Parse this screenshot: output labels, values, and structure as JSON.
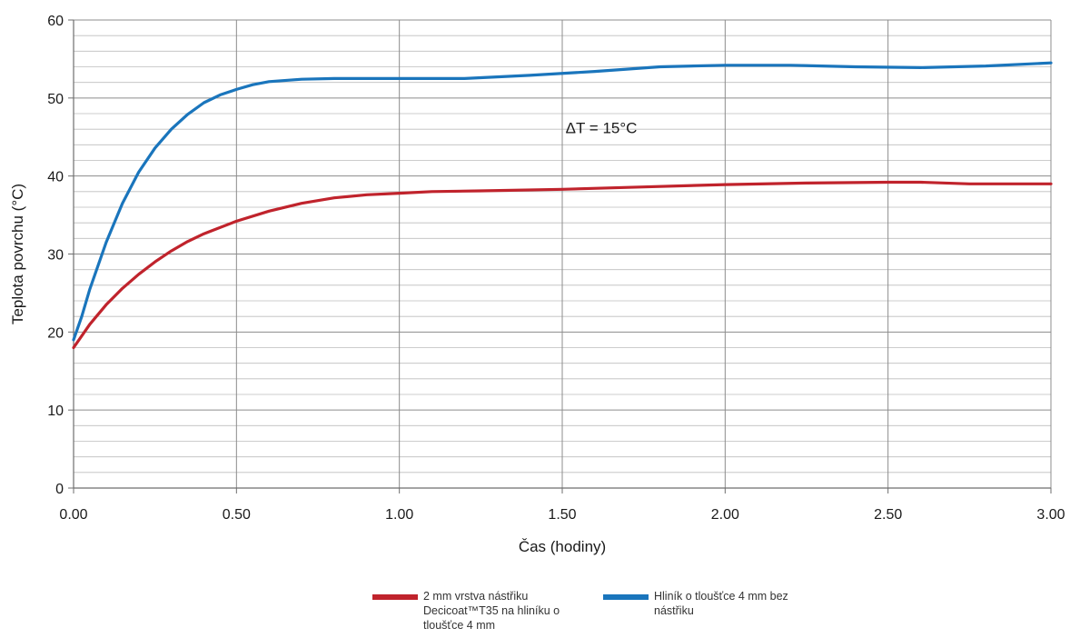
{
  "chart_data": {
    "type": "line",
    "title": "",
    "xlabel": "Čas (hodiny)",
    "ylabel": "Teplota povrchu (°C)",
    "xlim": [
      0,
      3
    ],
    "ylim": [
      0,
      60
    ],
    "x_ticks": [
      "0.00",
      "0.50",
      "1.00",
      "1.50",
      "2.00",
      "2.50",
      "3.00"
    ],
    "y_ticks": [
      "0",
      "10",
      "20",
      "30",
      "40",
      "50",
      "60"
    ],
    "grid": true,
    "legend_position": "bottom",
    "annotation": "ΔT = 15°C",
    "series": [
      {
        "name": "2 mm vrstva nástřiku Decicoat™T35 na hliníku o tloušťce 4 mm",
        "color": "#c0232c",
        "x": [
          0,
          0.05,
          0.1,
          0.15,
          0.2,
          0.25,
          0.3,
          0.35,
          0.4,
          0.5,
          0.6,
          0.7,
          0.8,
          0.9,
          1.0,
          1.1,
          1.25,
          1.5,
          1.75,
          2.0,
          2.25,
          2.5,
          2.6,
          2.75,
          3.0
        ],
        "y": [
          18,
          21,
          23.5,
          25.6,
          27.4,
          29.0,
          30.4,
          31.6,
          32.6,
          34.2,
          35.5,
          36.5,
          37.2,
          37.6,
          37.8,
          38.0,
          38.1,
          38.3,
          38.6,
          38.9,
          39.1,
          39.2,
          39.2,
          39.0,
          39.0
        ]
      },
      {
        "name": "Hliník o tloušťce 4 mm bez nástřiku",
        "color": "#1a75bc",
        "x": [
          0,
          0.025,
          0.05,
          0.1,
          0.15,
          0.2,
          0.25,
          0.3,
          0.35,
          0.4,
          0.45,
          0.5,
          0.55,
          0.6,
          0.7,
          0.8,
          1.0,
          1.2,
          1.4,
          1.6,
          1.8,
          2.0,
          2.2,
          2.4,
          2.6,
          2.8,
          3.0
        ],
        "y": [
          19,
          22,
          25.5,
          31.5,
          36.5,
          40.5,
          43.6,
          46.0,
          47.9,
          49.4,
          50.4,
          51.1,
          51.7,
          52.1,
          52.4,
          52.5,
          52.5,
          52.5,
          52.9,
          53.4,
          54.0,
          54.2,
          54.2,
          54.0,
          53.9,
          54.1,
          54.5
        ]
      }
    ]
  }
}
